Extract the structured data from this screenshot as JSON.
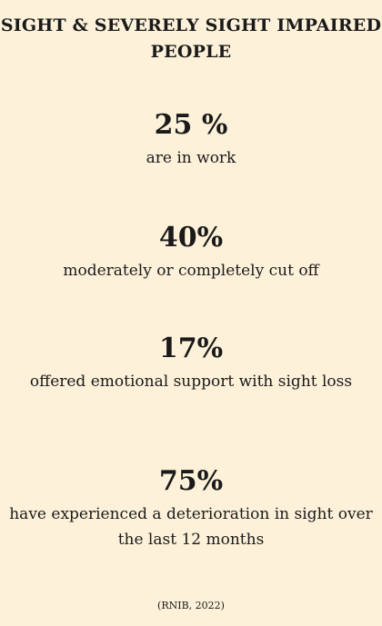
{
  "header": {
    "title": "SIGHT & SEVERELY SIGHT IMPAIRED PEOPLE"
  },
  "stats": [
    {
      "value": "25 %",
      "label": "are in work"
    },
    {
      "value": "40%",
      "label": "moderately or completely cut off"
    },
    {
      "value": "17%",
      "label": "offered emotional support with sight loss"
    },
    {
      "value": "75%",
      "label": "have experienced a deterioration in sight over the last 12 months"
    }
  ],
  "footer": {
    "source": "(RNIB, 2022)"
  },
  "colors": {
    "background": "#fdf1d9",
    "text": "#1a1a1a"
  }
}
